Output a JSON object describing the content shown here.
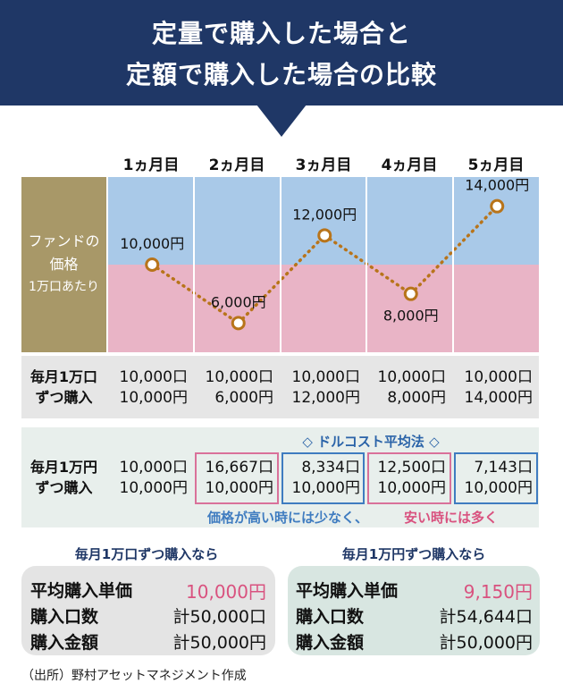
{
  "title": {
    "line1": "定量で購入した場合と",
    "line2": "定額で購入した場合の比較"
  },
  "months": [
    "1ヵ月目",
    "2ヵ月目",
    "3ヵ月目",
    "4ヵ月目",
    "5ヵ月目"
  ],
  "fund": {
    "label1": "ファンドの",
    "label2": "価格",
    "label3": "1万口あたり"
  },
  "colors": {
    "header": "#1f3766",
    "gold": "#a89868",
    "blue_band": "#a9c9e8",
    "pink_band": "#e9b4c6",
    "line": "#b8741a",
    "pink_box": "#d9719a",
    "blue_box": "#3f7cc0"
  },
  "chart_data": {
    "type": "line",
    "x": [
      "1ヵ月目",
      "2ヵ月目",
      "3ヵ月目",
      "4ヵ月目",
      "5ヵ月目"
    ],
    "series": [
      {
        "values": [
          10000,
          6000,
          12000,
          8000,
          14000
        ]
      }
    ],
    "data_labels": [
      "10,000円",
      "6,000円",
      "12,000円",
      "8,000円",
      "14,000円"
    ],
    "ylim": [
      4000,
      16000
    ],
    "band_threshold": 10000
  },
  "fixed_qty": {
    "label1": "毎月1万口",
    "label2": "ずつ購入",
    "units": [
      "10,000口",
      "10,000口",
      "10,000口",
      "10,000口",
      "10,000口"
    ],
    "amounts": [
      "10,000円",
      "6,000円",
      "12,000円",
      "8,000円",
      "14,000円"
    ]
  },
  "fixed_amt": {
    "label1": "毎月1万円",
    "label2": "ずつ購入",
    "units": [
      "10,000口",
      "16,667口",
      "8,334口",
      "12,500口",
      "7,143口"
    ],
    "amounts": [
      "10,000円",
      "10,000円",
      "10,000円",
      "10,000円",
      "10,000円"
    ]
  },
  "dca": {
    "title": "◇ ドルコスト平均法 ◇",
    "note_part1": "価格が高い時には少なく、",
    "note_part2": "安い時には多く"
  },
  "summary_qty": {
    "title": "毎月1万口ずつ購入なら",
    "avg_label": "平均購入単価",
    "avg_value": "10,000円",
    "units_label": "購入口数",
    "units_value": "計50,000口",
    "amount_label": "購入金額",
    "amount_value": "計50,000円"
  },
  "summary_amt": {
    "title": "毎月1万円ずつ購入なら",
    "avg_label": "平均購入単価",
    "avg_value": "9,150円",
    "units_label": "購入口数",
    "units_value": "計54,644口",
    "amount_label": "購入金額",
    "amount_value": "計50,000円"
  },
  "source": "（出所）野村アセットマネジメント作成"
}
